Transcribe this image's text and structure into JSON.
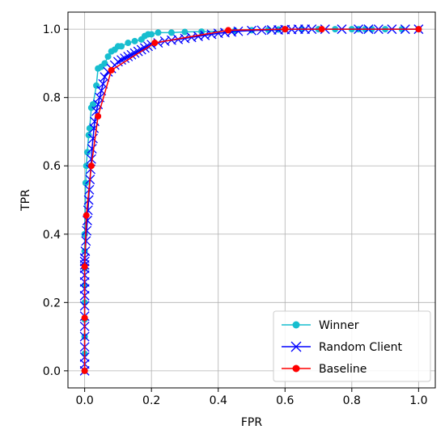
{
  "chart_data": {
    "type": "line",
    "title": "",
    "xlabel": "FPR",
    "ylabel": "TPR",
    "xlim": [
      -0.05,
      1.05
    ],
    "ylim": [
      -0.05,
      1.05
    ],
    "xticks": [
      0.0,
      0.2,
      0.4,
      0.6,
      0.8,
      1.0
    ],
    "yticks": [
      0.0,
      0.2,
      0.4,
      0.6,
      0.8,
      1.0
    ],
    "xtick_labels": [
      "0.0",
      "0.2",
      "0.4",
      "0.6",
      "0.8",
      "1.0"
    ],
    "ytick_labels": [
      "0.0",
      "0.2",
      "0.4",
      "0.6",
      "0.8",
      "1.0"
    ],
    "grid": true,
    "legend_position": "bottom-right",
    "series": [
      {
        "name": "Winner",
        "color": "#17becf",
        "marker": "circle",
        "x": [
          0,
          0,
          0,
          0,
          0,
          0,
          0,
          0,
          0,
          0.003,
          0.005,
          0.008,
          0.012,
          0.015,
          0.02,
          0.025,
          0.035,
          0.04,
          0.05,
          0.06,
          0.07,
          0.08,
          0.09,
          0.1,
          0.11,
          0.13,
          0.15,
          0.17,
          0.18,
          0.19,
          0.2,
          0.22,
          0.26,
          0.3,
          0.35,
          0.45,
          0.5,
          0.55,
          0.58,
          0.6,
          0.65,
          0.7,
          0.75,
          0.8,
          0.82,
          0.84,
          0.86,
          0.9,
          0.95,
          1.0
        ],
        "y": [
          0,
          0.05,
          0.1,
          0.15,
          0.2,
          0.25,
          0.3,
          0.35,
          0.4,
          0.55,
          0.6,
          0.64,
          0.69,
          0.71,
          0.77,
          0.78,
          0.835,
          0.885,
          0.89,
          0.9,
          0.92,
          0.935,
          0.94,
          0.95,
          0.95,
          0.96,
          0.965,
          0.97,
          0.98,
          0.985,
          0.985,
          0.99,
          0.99,
          0.992,
          0.993,
          0.995,
          0.997,
          0.998,
          0.999,
          1.0,
          1.0,
          1.0,
          1.0,
          1.0,
          1.0,
          1.0,
          1.0,
          1.0,
          1.0,
          1.0
        ]
      },
      {
        "name": "Random Client",
        "color": "#0000ff",
        "marker": "x",
        "x": [
          0,
          0,
          0,
          0,
          0,
          0,
          0,
          0,
          0,
          0,
          0,
          0,
          0,
          0,
          0,
          0,
          0.002,
          0.004,
          0.006,
          0.008,
          0.01,
          0.012,
          0.014,
          0.016,
          0.018,
          0.02,
          0.022,
          0.025,
          0.028,
          0.03,
          0.035,
          0.04,
          0.045,
          0.05,
          0.055,
          0.06,
          0.07,
          0.08,
          0.09,
          0.1,
          0.11,
          0.12,
          0.13,
          0.14,
          0.15,
          0.16,
          0.17,
          0.18,
          0.19,
          0.2,
          0.22,
          0.24,
          0.26,
          0.28,
          0.3,
          0.32,
          0.34,
          0.36,
          0.38,
          0.4,
          0.42,
          0.44,
          0.46,
          0.5,
          0.53,
          0.56,
          0.58,
          0.6,
          0.62,
          0.64,
          0.66,
          0.68,
          0.72,
          0.77,
          0.82,
          0.85,
          0.88,
          0.92,
          0.96,
          1.0
        ],
        "y": [
          0,
          0.02,
          0.04,
          0.07,
          0.1,
          0.13,
          0.16,
          0.19,
          0.22,
          0.24,
          0.26,
          0.28,
          0.3,
          0.31,
          0.32,
          0.33,
          0.35,
          0.38,
          0.41,
          0.44,
          0.47,
          0.5,
          0.53,
          0.56,
          0.59,
          0.62,
          0.65,
          0.68,
          0.71,
          0.73,
          0.76,
          0.78,
          0.8,
          0.82,
          0.84,
          0.86,
          0.875,
          0.885,
          0.895,
          0.905,
          0.91,
          0.915,
          0.92,
          0.925,
          0.93,
          0.935,
          0.94,
          0.945,
          0.95,
          0.955,
          0.96,
          0.965,
          0.968,
          0.97,
          0.973,
          0.976,
          0.979,
          0.982,
          0.985,
          0.988,
          0.99,
          0.992,
          0.994,
          0.996,
          0.997,
          0.998,
          0.998,
          0.999,
          0.999,
          1.0,
          1.0,
          1.0,
          1.0,
          1.0,
          1.0,
          1.0,
          1.0,
          1.0,
          1.0,
          1.0
        ]
      },
      {
        "name": "Baseline",
        "color": "#ff0000",
        "marker": "circle",
        "x": [
          0,
          0,
          0,
          0.005,
          0.02,
          0.04,
          0.08,
          0.21,
          0.43,
          0.6,
          0.71,
          1.0
        ],
        "y": [
          0,
          0.155,
          0.305,
          0.455,
          0.6,
          0.745,
          0.88,
          0.96,
          0.997,
          1.0,
          1.0,
          1.0
        ]
      }
    ]
  }
}
